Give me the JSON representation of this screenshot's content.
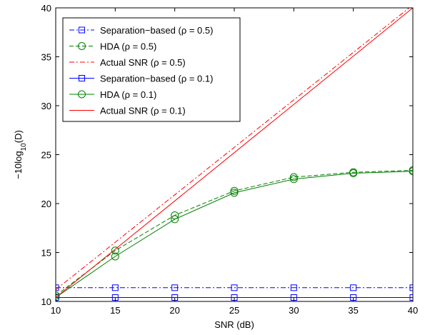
{
  "chart_data": {
    "type": "line",
    "xlabel": "SNR (dB)",
    "ylabel": {
      "prefix": "−10log",
      "sub": "10",
      "suffix": "(D)"
    },
    "xlim": [
      10,
      40
    ],
    "ylim": [
      10,
      40
    ],
    "xticks": [
      10,
      15,
      20,
      25,
      30,
      35,
      40
    ],
    "yticks": [
      10,
      15,
      20,
      25,
      30,
      35,
      40
    ],
    "grid": false,
    "legend_position": "top-left",
    "series": [
      {
        "name": "Separation−based (ρ = 0.5)",
        "color": "#0000ff",
        "dash": "dashdot",
        "marker": "square",
        "x": [
          10,
          15,
          20,
          25,
          30,
          35,
          40
        ],
        "y": [
          11.4,
          11.4,
          11.4,
          11.4,
          11.4,
          11.4,
          11.4
        ]
      },
      {
        "name": "HDA (ρ = 0.5)",
        "color": "#008000",
        "dash": "dashed",
        "marker": "circle",
        "x": [
          10,
          15,
          20,
          25,
          30,
          35,
          40
        ],
        "y": [
          10.6,
          15.2,
          18.8,
          21.3,
          22.7,
          23.2,
          23.4
        ]
      },
      {
        "name": "Actual SNR (ρ = 0.5)",
        "color": "#ff0000",
        "dash": "dashdot",
        "marker": "none",
        "x": [
          10,
          40
        ],
        "y": [
          11.2,
          40.3
        ]
      },
      {
        "name": "Separation−based (ρ = 0.1)",
        "color": "#0000ff",
        "dash": "solid",
        "marker": "square",
        "x": [
          10,
          15,
          20,
          25,
          30,
          35,
          40
        ],
        "y": [
          10.4,
          10.4,
          10.4,
          10.4,
          10.4,
          10.4,
          10.4
        ]
      },
      {
        "name": "HDA (ρ = 0.1)",
        "color": "#008000",
        "dash": "solid",
        "marker": "circle",
        "x": [
          10,
          15,
          20,
          25,
          30,
          35,
          40
        ],
        "y": [
          10.4,
          14.6,
          18.4,
          21.1,
          22.5,
          23.1,
          23.3
        ]
      },
      {
        "name": "Actual SNR (ρ = 0.1)",
        "color": "#ff0000",
        "dash": "solid",
        "marker": "none",
        "x": [
          10,
          40
        ],
        "y": [
          10.4,
          40
        ]
      }
    ]
  }
}
